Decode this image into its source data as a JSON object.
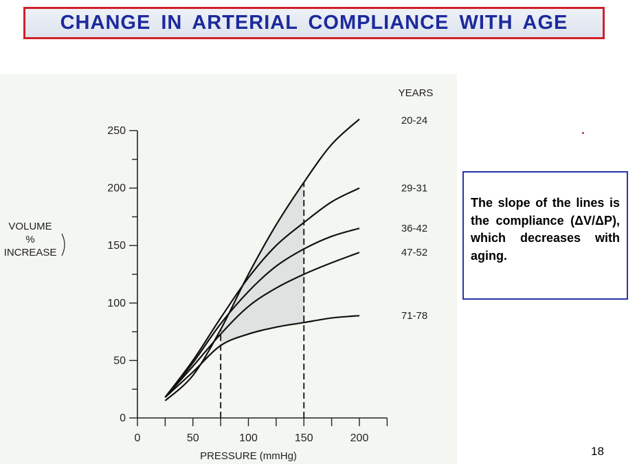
{
  "title": "CHANGE IN ARTERIAL COMPLIANCE WITH AGE",
  "note": "The slope of the lines is the compliance (ΔV/ΔP), which decreases with aging.",
  "page_number": "18",
  "colors": {
    "title_text": "#1c2a9c",
    "title_border": "#d0202a",
    "note_border": "#2a33a8",
    "panel_bg": "#f3f6f1"
  },
  "chart_data": {
    "type": "line",
    "xlabel": "PRESSURE (mmHg)",
    "ylabel_lines": [
      "VOLUME",
      "%",
      "INCREASE"
    ],
    "legend_title": "YEARS",
    "xlim": [
      0,
      225
    ],
    "ylim": [
      0,
      250
    ],
    "x_ticks": [
      0,
      50,
      100,
      150,
      200
    ],
    "y_ticks": [
      0,
      50,
      100,
      150,
      200,
      250
    ],
    "series": [
      {
        "name": "20-24",
        "points": [
          [
            25,
            15
          ],
          [
            50,
            37
          ],
          [
            75,
            77
          ],
          [
            100,
            125
          ],
          [
            125,
            168
          ],
          [
            150,
            205
          ],
          [
            175,
            238
          ],
          [
            200,
            260
          ]
        ]
      },
      {
        "name": "29-31",
        "points": [
          [
            25,
            18
          ],
          [
            50,
            50
          ],
          [
            75,
            87
          ],
          [
            100,
            122
          ],
          [
            125,
            150
          ],
          [
            150,
            170
          ],
          [
            175,
            188
          ],
          [
            200,
            200
          ]
        ]
      },
      {
        "name": "36-42",
        "points": [
          [
            25,
            18
          ],
          [
            50,
            48
          ],
          [
            75,
            82
          ],
          [
            100,
            110
          ],
          [
            125,
            132
          ],
          [
            150,
            147
          ],
          [
            175,
            158
          ],
          [
            200,
            165
          ]
        ]
      },
      {
        "name": "47-52",
        "points": [
          [
            25,
            18
          ],
          [
            50,
            45
          ],
          [
            75,
            73
          ],
          [
            100,
            97
          ],
          [
            125,
            113
          ],
          [
            150,
            125
          ],
          [
            175,
            135
          ],
          [
            200,
            144
          ]
        ]
      },
      {
        "name": "71-78",
        "points": [
          [
            25,
            18
          ],
          [
            50,
            40
          ],
          [
            75,
            63
          ],
          [
            100,
            73
          ],
          [
            125,
            79
          ],
          [
            150,
            83
          ],
          [
            175,
            87
          ],
          [
            200,
            89
          ]
        ]
      }
    ],
    "reference_lines_x": [
      75,
      150
    ],
    "shaded_region": {
      "x_range": [
        75,
        150
      ],
      "between_series": [
        "20-24",
        "71-78"
      ]
    },
    "grid": false
  }
}
